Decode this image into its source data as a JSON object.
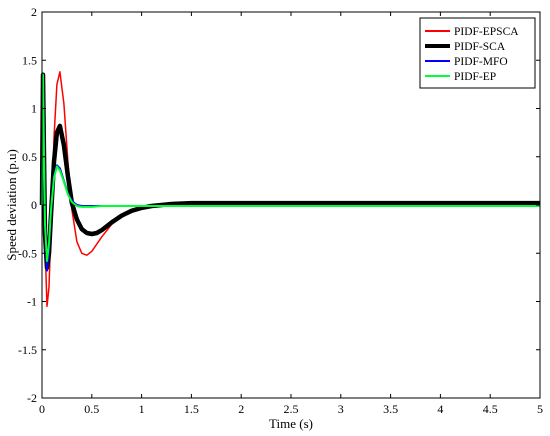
{
  "chart_data": {
    "type": "line",
    "title": "",
    "xlabel": "Time (s)",
    "ylabel": "Speed deviation (p.u)",
    "xlim": [
      0,
      5
    ],
    "ylim": [
      -2,
      2
    ],
    "xticks": [
      "0",
      "0.5",
      "1",
      "1.5",
      "2",
      "2.5",
      "3",
      "3.5",
      "4",
      "4.5",
      "5"
    ],
    "yticks": [
      "2",
      "1.5",
      "1",
      "0.5",
      "0",
      "-0.5",
      "-1",
      "-1.5",
      "-2"
    ],
    "grid": false,
    "legend_position": "top-right",
    "series": [
      {
        "name": "PIDF-EPSCA",
        "color": "#ff0000",
        "x": [
          0,
          0.01,
          0.02,
          0.03,
          0.05,
          0.07,
          0.09,
          0.12,
          0.15,
          0.18,
          0.22,
          0.26,
          0.3,
          0.35,
          0.4,
          0.45,
          0.5,
          0.6,
          0.7,
          0.8,
          0.9,
          1.0,
          1.1,
          1.2,
          1.3,
          1.5,
          2.0,
          3.0,
          4.0,
          5.0
        ],
        "y": [
          0,
          1.35,
          0.6,
          -0.4,
          -1.05,
          -0.85,
          -0.25,
          0.7,
          1.25,
          1.38,
          1.05,
          0.45,
          -0.05,
          -0.38,
          -0.5,
          -0.52,
          -0.48,
          -0.33,
          -0.2,
          -0.11,
          -0.06,
          -0.03,
          -0.01,
          0.0,
          0.0,
          0.0,
          0.0,
          0.0,
          0.0,
          0.0
        ]
      },
      {
        "name": "PIDF-SCA",
        "color": "#000000",
        "x": [
          0,
          0.01,
          0.02,
          0.03,
          0.05,
          0.07,
          0.09,
          0.12,
          0.15,
          0.18,
          0.22,
          0.26,
          0.3,
          0.35,
          0.4,
          0.45,
          0.5,
          0.55,
          0.6,
          0.7,
          0.8,
          0.9,
          1.0,
          1.1,
          1.2,
          1.3,
          1.5,
          2.0,
          3.0,
          4.0,
          5.0
        ],
        "y": [
          0,
          1.35,
          0.5,
          -0.3,
          -0.65,
          -0.5,
          -0.1,
          0.45,
          0.75,
          0.82,
          0.62,
          0.3,
          0.02,
          -0.15,
          -0.25,
          -0.29,
          -0.3,
          -0.29,
          -0.26,
          -0.18,
          -0.11,
          -0.06,
          -0.03,
          -0.01,
          0.0,
          0.01,
          0.02,
          0.02,
          0.02,
          0.02,
          0.02
        ]
      },
      {
        "name": "PIDF-MFO",
        "color": "#0000ff",
        "x": [
          0,
          0.01,
          0.02,
          0.03,
          0.05,
          0.07,
          0.09,
          0.12,
          0.15,
          0.18,
          0.22,
          0.26,
          0.3,
          0.35,
          0.4,
          0.5,
          0.6,
          1.0,
          2.0,
          3.0,
          4.0,
          5.0
        ],
        "y": [
          0,
          1.35,
          0.5,
          -0.2,
          -0.68,
          -0.45,
          -0.05,
          0.3,
          0.41,
          0.38,
          0.25,
          0.12,
          0.04,
          0.0,
          -0.01,
          -0.01,
          -0.01,
          -0.01,
          -0.01,
          -0.01,
          -0.01,
          -0.01
        ]
      },
      {
        "name": "PIDF-EP",
        "color": "#00ff33",
        "x": [
          0,
          0.01,
          0.02,
          0.03,
          0.05,
          0.07,
          0.09,
          0.12,
          0.15,
          0.18,
          0.22,
          0.26,
          0.3,
          0.35,
          0.4,
          0.5,
          0.6,
          1.0,
          2.0,
          3.0,
          4.0,
          5.0
        ],
        "y": [
          0,
          1.35,
          0.5,
          -0.2,
          -0.58,
          -0.4,
          -0.05,
          0.28,
          0.4,
          0.36,
          0.24,
          0.11,
          0.03,
          -0.01,
          -0.02,
          -0.02,
          -0.01,
          -0.01,
          -0.01,
          -0.01,
          -0.01,
          -0.01
        ]
      }
    ]
  }
}
